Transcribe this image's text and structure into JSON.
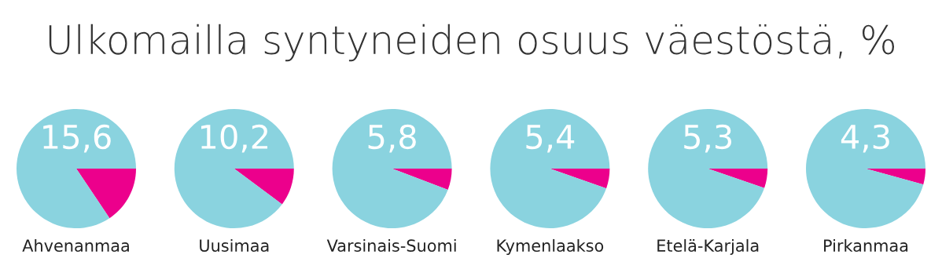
{
  "chart_data": [
    {
      "type": "pie",
      "title": "Ulkomailla syntyneiden osuus väestöstä, %",
      "xlabel": "Ahvenanmaa",
      "categories": [
        null,
        null
      ],
      "values": [
        15.6,
        84.4
      ],
      "colors": [
        "#ec008c",
        "#8ad3df"
      ],
      "annotations": [
        "15,6"
      ]
    },
    {
      "type": "pie",
      "xlabel": "Uusimaa",
      "categories": [
        null,
        null
      ],
      "values": [
        10.2,
        89.8
      ],
      "colors": [
        "#ec008c",
        "#8ad3df"
      ],
      "annotations": [
        "10,2"
      ]
    },
    {
      "type": "pie",
      "xlabel": "Varsinais-Suomi",
      "categories": [
        null,
        null
      ],
      "values": [
        5.8,
        94.2
      ],
      "colors": [
        "#ec008c",
        "#8ad3df"
      ],
      "annotations": [
        "5,8"
      ]
    },
    {
      "type": "pie",
      "xlabel": "Kymenlaakso",
      "categories": [
        null,
        null
      ],
      "values": [
        5.4,
        94.6
      ],
      "colors": [
        "#ec008c",
        "#8ad3df"
      ],
      "annotations": [
        "5,4"
      ]
    },
    {
      "type": "pie",
      "xlabel": "Etelä-Karjala",
      "categories": [
        null,
        null
      ],
      "values": [
        5.3,
        94.7
      ],
      "colors": [
        "#ec008c",
        "#8ad3df"
      ],
      "annotations": [
        "5,3"
      ]
    },
    {
      "type": "pie",
      "xlabel": "Pirkanmaa",
      "categories": [
        null,
        null
      ],
      "values": [
        4.3,
        95.7
      ],
      "colors": [
        "#ec008c",
        "#8ad3df"
      ],
      "annotations": [
        "4,3"
      ]
    }
  ]
}
